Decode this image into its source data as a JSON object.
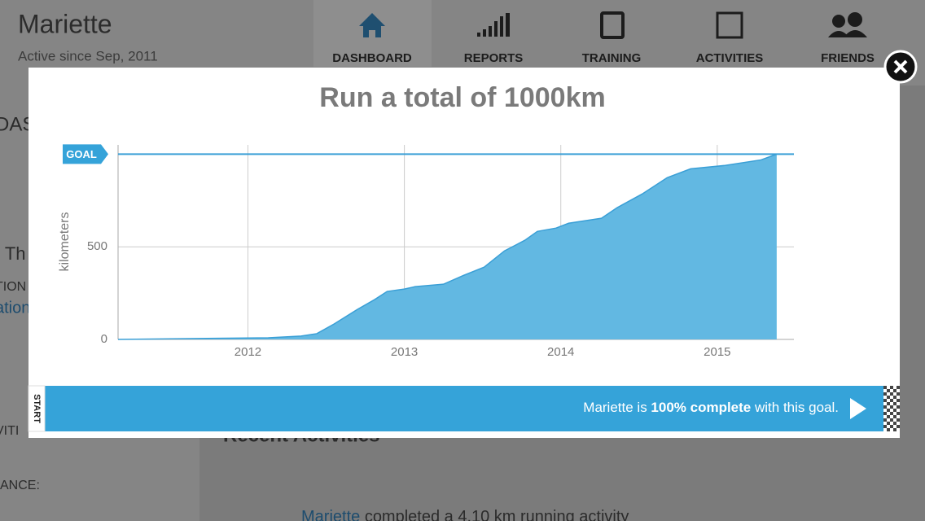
{
  "header": {
    "name": "Mariette",
    "since": "Active since Sep, 2011"
  },
  "nav": [
    "DASHBOARD",
    "REPORTS",
    "TRAINING",
    "ACTIVITIES",
    "FRIENDS"
  ],
  "background": {
    "fragments": [
      "DAS",
      ", Th",
      "TION",
      "ation",
      "VITI",
      "ANCE:"
    ],
    "section": "Recent Activities",
    "activity_user": "Mariette",
    "activity_text": "completed a 4.10 km  running activity"
  },
  "chart_data": {
    "type": "area",
    "title": "Run a total of 1000km",
    "y_label": "kilometers",
    "x": [
      2011.17,
      2012.13,
      2012.34,
      2012.44,
      2012.55,
      2012.7,
      2012.81,
      2012.89,
      2013.0,
      2013.07,
      2013.25,
      2013.38,
      2013.51,
      2013.64,
      2013.77,
      2013.85,
      2013.97,
      2014.05,
      2014.26,
      2014.36,
      2014.52,
      2014.68,
      2014.83,
      2015.05,
      2015.28,
      2015.38
    ],
    "values": [
      0,
      9,
      18,
      31,
      83,
      162,
      215,
      259,
      272,
      285,
      298,
      346,
      390,
      478,
      535,
      583,
      601,
      627,
      654,
      711,
      785,
      873,
      921,
      939,
      969,
      1000
    ],
    "color": "#62b8e2",
    "line_color": "#3a9fd6",
    "xlim": [
      2011.17,
      2015.49
    ],
    "ylim": [
      0,
      1050
    ],
    "xticks": [
      2012,
      2013,
      2014,
      2015
    ],
    "yticks": [
      0,
      500
    ],
    "grid": true,
    "goal": {
      "label": "GOAL",
      "value": 1000
    }
  },
  "progress": {
    "start": "START",
    "prefix": "Mariette is ",
    "highlight": "100% complete",
    "suffix": " with this goal."
  }
}
